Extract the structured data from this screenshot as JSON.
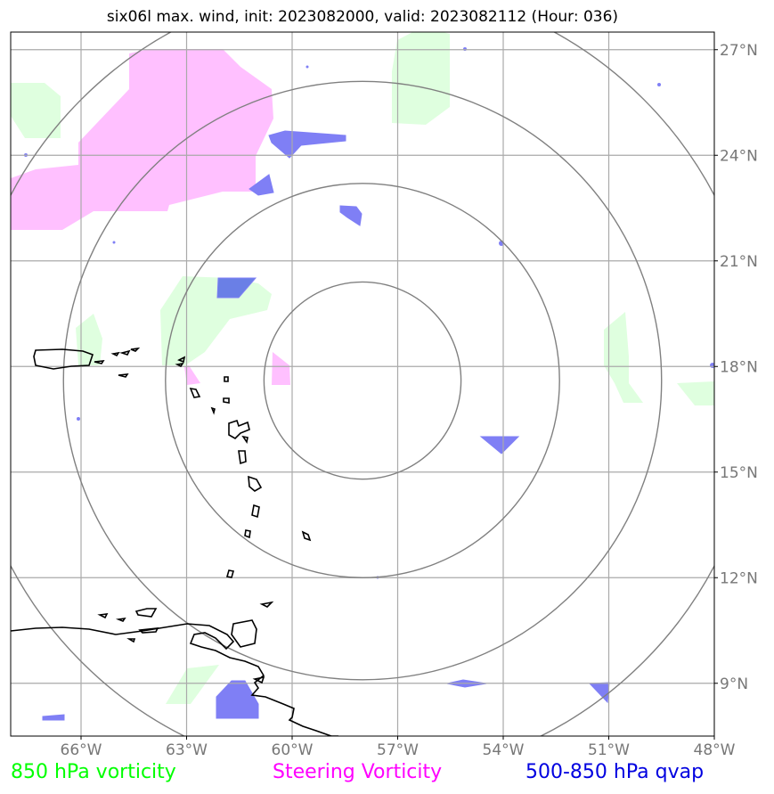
{
  "title": "six06l max. wind, init: 2023082000, valid: 2023082112 (Hour: 036)",
  "colors": {
    "vort850": "#dfffdf",
    "steering": "#ffc0ff",
    "qvap": "#7f7ff5",
    "qvap_dark": "#6a7fe6",
    "grid": "#aaaaaa",
    "rings": "#808080",
    "coast": "#000000",
    "legend_850": "#00ff00",
    "legend_steer": "#ff00ff",
    "legend_qvap": "#0000e0"
  },
  "map": {
    "lon_range": [
      -68,
      -48
    ],
    "lat_range": [
      7.5,
      27.5
    ],
    "storm_center": {
      "lon": -58.0,
      "lat": 17.6
    },
    "ring_radii_deg": [
      2.8,
      5.6,
      8.5,
      11.3
    ],
    "lat_ticks": [
      {
        "value": 27,
        "label": "27°N"
      },
      {
        "value": 24,
        "label": "24°N"
      },
      {
        "value": 21,
        "label": "21°N"
      },
      {
        "value": 18,
        "label": "18°N"
      },
      {
        "value": 15,
        "label": "15°N"
      },
      {
        "value": 12,
        "label": "12°N"
      },
      {
        "value": 9,
        "label": "9°N"
      }
    ],
    "lon_ticks": [
      {
        "value": -66,
        "label": "66°W"
      },
      {
        "value": -63,
        "label": "63°W"
      },
      {
        "value": -60,
        "label": "60°W"
      },
      {
        "value": -57,
        "label": "57°W"
      },
      {
        "value": -54,
        "label": "54°W"
      },
      {
        "value": -51,
        "label": "51°W"
      },
      {
        "value": -48,
        "label": "48°W"
      }
    ]
  },
  "legend": {
    "vort850": "850 hPa vorticity",
    "steering": "Steering Vorticity",
    "qvap": "500-850 hPa qvap"
  }
}
